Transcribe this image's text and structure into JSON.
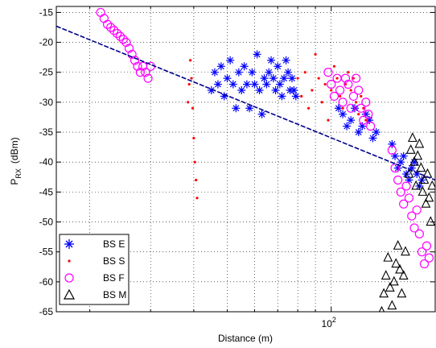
{
  "chart_data": {
    "type": "scatter",
    "xlabel": "Distance (m)",
    "ylabel": {
      "main": "P",
      "sub": "RX",
      "unit": "(dBm)"
    },
    "x_scale": "log",
    "xlim": [
      16,
      200
    ],
    "ylim": [
      -65,
      -14
    ],
    "x_ticks": [
      {
        "value": 100,
        "base": "10",
        "exp": "2"
      }
    ],
    "y_ticks": [
      -15,
      -20,
      -25,
      -30,
      -35,
      -40,
      -45,
      -50,
      -55,
      -60,
      -65
    ],
    "grid": true,
    "legend_position": "bottom-left",
    "series": [
      {
        "name": "BS E",
        "marker": "asterisk",
        "color": "#0000ff",
        "points": [
          [
            45,
            -28
          ],
          [
            46,
            -25
          ],
          [
            47,
            -27
          ],
          [
            48,
            -24
          ],
          [
            49,
            -29
          ],
          [
            50,
            -26
          ],
          [
            51,
            -23
          ],
          [
            52,
            -27
          ],
          [
            53,
            -31
          ],
          [
            54,
            -25
          ],
          [
            55,
            -28
          ],
          [
            56,
            -24
          ],
          [
            57,
            -27
          ],
          [
            58,
            -31
          ],
          [
            59,
            -25
          ],
          [
            60,
            -27
          ],
          [
            61,
            -22
          ],
          [
            62,
            -28
          ],
          [
            63,
            -32
          ],
          [
            64,
            -26
          ],
          [
            65,
            -27
          ],
          [
            66,
            -25
          ],
          [
            67,
            -23
          ],
          [
            68,
            -26
          ],
          [
            69,
            -28
          ],
          [
            70,
            -24
          ],
          [
            71,
            -27
          ],
          [
            72,
            -29
          ],
          [
            73,
            -26
          ],
          [
            74,
            -23
          ],
          [
            75,
            -25
          ],
          [
            76,
            -28
          ],
          [
            77,
            -26
          ],
          [
            78,
            -28
          ],
          [
            79,
            -29
          ],
          [
            105,
            -31
          ],
          [
            108,
            -32
          ],
          [
            111,
            -34
          ],
          [
            114,
            -33
          ],
          [
            117,
            -31
          ],
          [
            120,
            -35
          ],
          [
            123,
            -34
          ],
          [
            126,
            -32
          ],
          [
            129,
            -33
          ],
          [
            132,
            -36
          ],
          [
            135,
            -35
          ],
          [
            150,
            -37
          ],
          [
            153,
            -39
          ],
          [
            156,
            -41
          ],
          [
            159,
            -40
          ],
          [
            162,
            -39
          ],
          [
            165,
            -42
          ],
          [
            168,
            -43
          ],
          [
            171,
            -41
          ],
          [
            174,
            -40
          ],
          [
            177,
            -42
          ],
          [
            180,
            -44
          ],
          [
            183,
            -43
          ]
        ]
      },
      {
        "name": "BS S",
        "marker": "dot",
        "color": "#ff0000",
        "points": [
          [
            38.5,
            -30
          ],
          [
            38.8,
            -27
          ],
          [
            39.1,
            -23
          ],
          [
            39.4,
            -26
          ],
          [
            39.7,
            -31
          ],
          [
            40,
            -36
          ],
          [
            40.3,
            -40
          ],
          [
            40.6,
            -43
          ],
          [
            40.9,
            -46
          ],
          [
            80,
            -26
          ],
          [
            82,
            -29
          ],
          [
            84,
            -25
          ],
          [
            86,
            -31
          ],
          [
            88,
            -28
          ],
          [
            90,
            -22
          ],
          [
            92,
            -26
          ],
          [
            94,
            -30
          ],
          [
            96,
            -27
          ],
          [
            98,
            -33
          ],
          [
            100,
            -28
          ],
          [
            102,
            -24
          ],
          [
            104,
            -26
          ],
          [
            106,
            -29
          ],
          [
            108,
            -31
          ],
          [
            110,
            -27
          ],
          [
            112,
            -25
          ],
          [
            114,
            -28
          ],
          [
            116,
            -26
          ],
          [
            118,
            -30
          ],
          [
            120,
            -32
          ],
          [
            122,
            -29
          ],
          [
            124,
            -31
          ],
          [
            126,
            -33
          ]
        ]
      },
      {
        "name": "BS F",
        "marker": "circle",
        "color": "#ff00ff",
        "points": [
          [
            21.5,
            -15
          ],
          [
            22,
            -16
          ],
          [
            22.5,
            -17
          ],
          [
            23,
            -17.5
          ],
          [
            23.5,
            -18
          ],
          [
            24,
            -18.5
          ],
          [
            24.5,
            -19
          ],
          [
            25,
            -19.5
          ],
          [
            25.5,
            -20
          ],
          [
            26,
            -21
          ],
          [
            26.5,
            -22
          ],
          [
            27,
            -23
          ],
          [
            27.5,
            -24
          ],
          [
            28,
            -25
          ],
          [
            28.5,
            -24
          ],
          [
            29,
            -25
          ],
          [
            29.5,
            -26
          ],
          [
            30,
            -24
          ],
          [
            98,
            -25
          ],
          [
            100,
            -27
          ],
          [
            102,
            -29
          ],
          [
            104,
            -26
          ],
          [
            106,
            -28
          ],
          [
            108,
            -30
          ],
          [
            110,
            -26
          ],
          [
            112,
            -27
          ],
          [
            114,
            -31
          ],
          [
            116,
            -29
          ],
          [
            118,
            -26
          ],
          [
            120,
            -28
          ],
          [
            122,
            -31
          ],
          [
            124,
            -33
          ],
          [
            126,
            -30
          ],
          [
            128,
            -32
          ],
          [
            130,
            -34
          ],
          [
            150,
            -38
          ],
          [
            153,
            -41
          ],
          [
            156,
            -43
          ],
          [
            159,
            -45
          ],
          [
            162,
            -47
          ],
          [
            165,
            -44
          ],
          [
            168,
            -46
          ],
          [
            171,
            -49
          ],
          [
            174,
            -51
          ],
          [
            177,
            -48
          ],
          [
            180,
            -52
          ],
          [
            183,
            -55
          ],
          [
            186,
            -57
          ],
          [
            189,
            -54
          ],
          [
            192,
            -56
          ]
        ]
      },
      {
        "name": "BS M",
        "marker": "triangle",
        "color": "#000000",
        "points": [
          [
            140,
            -65
          ],
          [
            142,
            -62
          ],
          [
            144,
            -59
          ],
          [
            146,
            -56
          ],
          [
            148,
            -61
          ],
          [
            150,
            -64
          ],
          [
            152,
            -60
          ],
          [
            154,
            -57
          ],
          [
            156,
            -54
          ],
          [
            158,
            -58
          ],
          [
            160,
            -62
          ],
          [
            162,
            -59
          ],
          [
            164,
            -55
          ],
          [
            168,
            -42
          ],
          [
            170,
            -38
          ],
          [
            172,
            -36
          ],
          [
            174,
            -40
          ],
          [
            176,
            -44
          ],
          [
            178,
            -39
          ],
          [
            180,
            -37
          ],
          [
            182,
            -41
          ],
          [
            184,
            -45
          ],
          [
            186,
            -43
          ],
          [
            188,
            -47
          ],
          [
            190,
            -42
          ],
          [
            192,
            -46
          ],
          [
            194,
            -50
          ],
          [
            196,
            -44
          ]
        ]
      },
      {
        "name": "",
        "marker": "line",
        "color": "#00008b",
        "points": [
          [
            16,
            -17.3
          ],
          [
            200,
            -43
          ]
        ]
      }
    ]
  }
}
